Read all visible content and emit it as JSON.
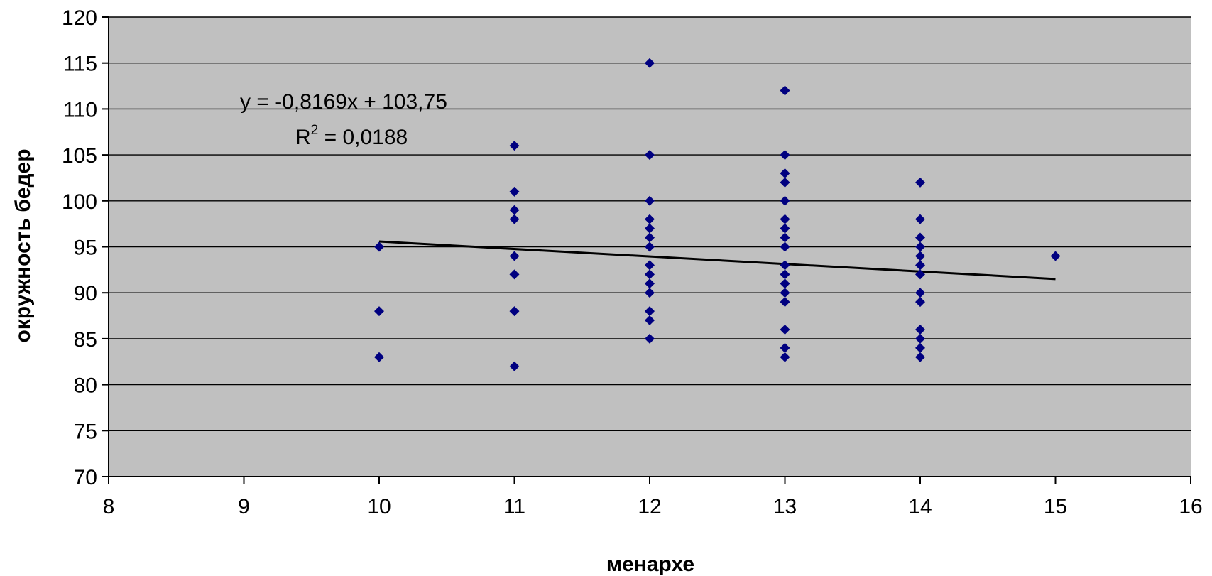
{
  "chart_data": {
    "type": "scatter",
    "xlabel": "менархе",
    "ylabel": "окружность бедер",
    "xlim": [
      8,
      16
    ],
    "ylim": [
      70,
      120
    ],
    "x_ticks": [
      8,
      9,
      10,
      11,
      12,
      13,
      14,
      15,
      16
    ],
    "y_ticks": [
      70,
      75,
      80,
      85,
      90,
      95,
      100,
      105,
      110,
      115,
      120
    ],
    "grid": "horizontal",
    "legend": "none",
    "series": [
      {
        "points": [
          [
            10,
            95
          ],
          [
            10,
            88
          ],
          [
            10,
            83
          ],
          [
            11,
            106
          ],
          [
            11,
            101
          ],
          [
            11,
            99
          ],
          [
            11,
            98
          ],
          [
            11,
            94
          ],
          [
            11,
            92
          ],
          [
            11,
            88
          ],
          [
            11,
            82
          ],
          [
            12,
            115
          ],
          [
            12,
            105
          ],
          [
            12,
            100
          ],
          [
            12,
            98
          ],
          [
            12,
            97
          ],
          [
            12,
            96
          ],
          [
            12,
            95
          ],
          [
            12,
            93
          ],
          [
            12,
            92
          ],
          [
            12,
            91
          ],
          [
            12,
            90
          ],
          [
            12,
            88
          ],
          [
            12,
            87
          ],
          [
            12,
            85
          ],
          [
            13,
            112
          ],
          [
            13,
            105
          ],
          [
            13,
            103
          ],
          [
            13,
            102
          ],
          [
            13,
            100
          ],
          [
            13,
            98
          ],
          [
            13,
            97
          ],
          [
            13,
            96
          ],
          [
            13,
            95
          ],
          [
            13,
            93
          ],
          [
            13,
            92
          ],
          [
            13,
            91
          ],
          [
            13,
            90
          ],
          [
            13,
            89
          ],
          [
            13,
            86
          ],
          [
            13,
            84
          ],
          [
            13,
            83
          ],
          [
            14,
            102
          ],
          [
            14,
            98
          ],
          [
            14,
            96
          ],
          [
            14,
            95
          ],
          [
            14,
            94
          ],
          [
            14,
            93
          ],
          [
            14,
            92
          ],
          [
            14,
            90
          ],
          [
            14,
            89
          ],
          [
            14,
            86
          ],
          [
            14,
            85
          ],
          [
            14,
            84
          ],
          [
            14,
            83
          ],
          [
            15,
            94
          ]
        ]
      }
    ],
    "trendline": {
      "slope": -0.8169,
      "intercept": 103.75,
      "x_range": [
        10,
        15
      ],
      "equation_text": "y = -0,8169x + 103,75",
      "r2_prefix": "R",
      "r2_exponent": "2",
      "r2_value_text": " = 0,0188"
    },
    "colors": {
      "plot_background": "#c0c0c0",
      "gridline": "#000000",
      "marker": "#000080",
      "trendline": "#000000",
      "page_background": "#ffffff"
    }
  }
}
